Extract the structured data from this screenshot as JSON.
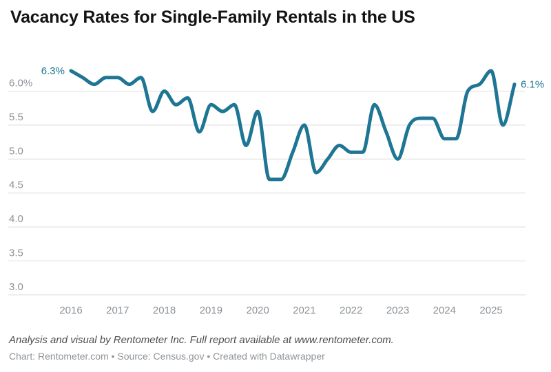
{
  "title": "Vacancy Rates for Single-Family Rentals in the US",
  "chart_data": {
    "type": "line",
    "title": "Vacancy Rates for Single-Family Rentals in the US",
    "unit": "%",
    "frequency": "quarterly",
    "quarters": [
      "2016 Q1",
      "2016 Q2",
      "2016 Q3",
      "2016 Q4",
      "2017 Q1",
      "2017 Q2",
      "2017 Q3",
      "2017 Q4",
      "2018 Q1",
      "2018 Q2",
      "2018 Q3",
      "2018 Q4",
      "2019 Q1",
      "2019 Q2",
      "2019 Q3",
      "2019 Q4",
      "2020 Q1",
      "2020 Q2",
      "2020 Q3",
      "2020 Q4",
      "2021 Q1",
      "2021 Q2",
      "2021 Q3",
      "2021 Q4",
      "2022 Q1",
      "2022 Q2",
      "2022 Q3",
      "2022 Q4",
      "2023 Q1",
      "2023 Q2",
      "2023 Q3",
      "2023 Q4",
      "2024 Q1",
      "2024 Q2",
      "2024 Q3",
      "2024 Q4",
      "2025 Q1",
      "2025 Q2",
      "2025 Q3"
    ],
    "values": [
      6.3,
      6.2,
      6.1,
      6.2,
      6.2,
      6.1,
      6.2,
      5.7,
      6.0,
      5.8,
      5.9,
      5.4,
      5.8,
      5.7,
      5.8,
      5.2,
      5.7,
      4.7,
      4.7,
      5.1,
      5.5,
      4.8,
      5.0,
      5.2,
      5.1,
      5.1,
      5.8,
      5.4,
      5.0,
      5.5,
      5.6,
      5.6,
      5.3,
      5.3,
      6.0,
      6.1,
      6.3,
      5.5,
      6.1
    ],
    "year_ticks": [
      "2016",
      "2017",
      "2018",
      "2019",
      "2020",
      "2021",
      "2022",
      "2023",
      "2024",
      "2025"
    ],
    "y_ticks": [
      {
        "value": 6.0,
        "label": "6.0%"
      },
      {
        "value": 5.5,
        "label": "5.5"
      },
      {
        "value": 5.0,
        "label": "5.0"
      },
      {
        "value": 4.5,
        "label": "4.5"
      },
      {
        "value": 4.0,
        "label": "4.0"
      },
      {
        "value": 3.5,
        "label": "3.5"
      },
      {
        "value": 3.0,
        "label": "3.0"
      }
    ],
    "ylim": [
      3.0,
      6.5
    ],
    "xlabel": "",
    "ylabel": "",
    "grid": true,
    "legend": "none",
    "start_label": "6.3%",
    "end_label": "6.1%",
    "colors": {
      "line": "#1e7694",
      "value_labels": "#1e7694",
      "grid": "#dcdcdc",
      "axis_text": "#8c9196",
      "title": "#141414",
      "note_text": "#4d4d4d",
      "credit_text": "#8f9499"
    }
  },
  "footer": {
    "note": "Analysis and visual by Rentometer Inc. Full report available at www.rentometer.com.",
    "credit": "Chart: Rentometer.com • Source: Census.gov • Created with Datawrapper"
  }
}
